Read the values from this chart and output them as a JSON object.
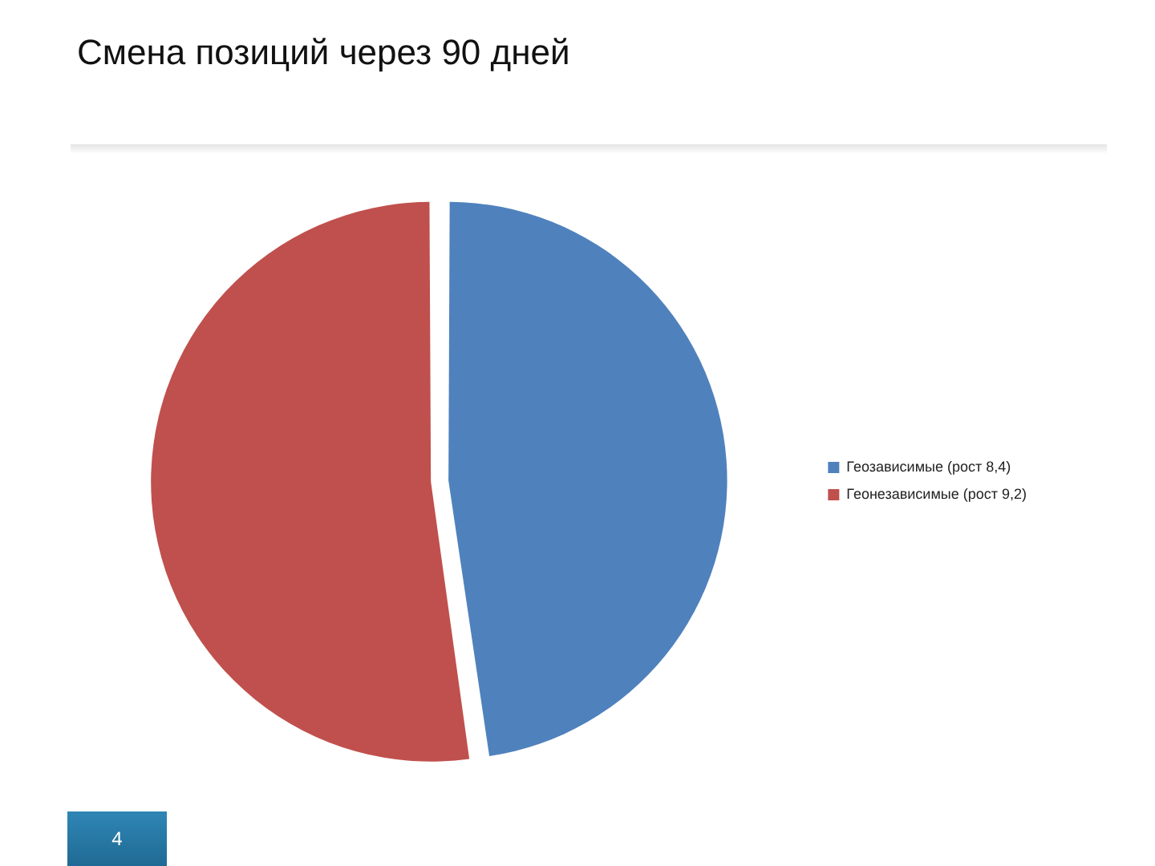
{
  "chart_data": {
    "type": "pie",
    "title": "Смена позиций через 90 дней",
    "categories": [
      "Геозависимые (рост 8,4)",
      "Геонезависимые (рост 9,2)"
    ],
    "values": [
      8.4,
      9.2
    ],
    "colors": [
      "#4f81bd",
      "#c0504d"
    ],
    "legend": "right",
    "annotations": [
      "4"
    ]
  }
}
